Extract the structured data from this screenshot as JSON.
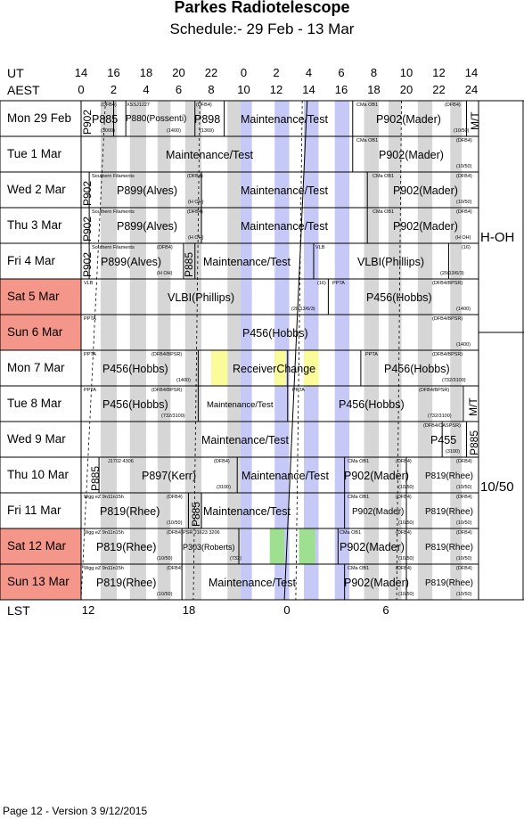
{
  "header": {
    "title": "Parkes Radiotelescope",
    "subtitle": "Schedule:- 29 Feb - 13 Mar"
  },
  "axis": {
    "ut_label": "UT",
    "aest_label": "AEST",
    "lst_label": "LST",
    "ut_ticks": [
      "14",
      "16",
      "18",
      "20",
      "22",
      "0",
      "2",
      "4",
      "6",
      "8",
      "10",
      "12",
      "14"
    ],
    "aest_ticks": [
      "0",
      "2",
      "4",
      "6",
      "8",
      "10",
      "12",
      "14",
      "16",
      "18",
      "20",
      "22",
      "24"
    ],
    "lst_ticks": [
      "12",
      "18",
      "0",
      "6"
    ]
  },
  "days": [
    {
      "label": "Mon   29 Feb",
      "weekend": false
    },
    {
      "label": "Tue    1  Mar",
      "weekend": false
    },
    {
      "label": "Wed   2  Mar",
      "weekend": false
    },
    {
      "label": "Thu    3  Mar",
      "weekend": false
    },
    {
      "label": "Fri     4  Mar",
      "weekend": false
    },
    {
      "label": "Sat    5  Mar",
      "weekend": true
    },
    {
      "label": "Sun    6  Mar",
      "weekend": true
    },
    {
      "label": "Mon   7  Mar",
      "weekend": false
    },
    {
      "label": "Tue    8  Mar",
      "weekend": false
    },
    {
      "label": "Wed   9  Mar",
      "weekend": false
    },
    {
      "label": "Thu   10 Mar",
      "weekend": false
    },
    {
      "label": "Fri    11 Mar",
      "weekend": false
    },
    {
      "label": "Sat    12 Mar",
      "weekend": true
    },
    {
      "label": "Sun   13 Mar",
      "weekend": true
    }
  ],
  "sidebar": {
    "receiver_1": "H-OH",
    "receiver_2": "10/50",
    "mt_label_1": "M/T",
    "mt_label_2": "M/T"
  },
  "colors": {
    "weekend": "#f4968a",
    "grey_band": "#d6d6d6",
    "blue_band": "#c6c8f6",
    "yellow_band": "#fbfb9a",
    "green_band": "#9ee090"
  },
  "cells": {
    "r0_p902": "P902",
    "r0_p885": "P885",
    "r0_p885_sub": "(3000)",
    "r0_dfb": "(DFB4)",
    "r0_xss": "XSSJ1227",
    "r0_p880": "P880(Possenti)",
    "r0_p880_sub": "(1400)",
    "r0_p898_hdr": "(DFB4)",
    "r0_p898": "P898",
    "r0_p898_sub": "(1369)",
    "r0_mt": "Maintenance/Test",
    "r0_cma": "CMa OB1",
    "r0_dfb2": "(DFB4)",
    "r0_p902b": "P902(Mader)",
    "r0_p902b_sub": "(10/50)",
    "r1_mt": "Maintenance/Test",
    "r1_cma": "CMa OB1",
    "r1_dfb": "(DFB4)",
    "r1_p902": "P902(Mader)",
    "r1_sub": "(10/50)",
    "r2_p902": "P902",
    "r2_sf": "Southern Filaments",
    "r2_dfb": "(DFB4)",
    "r2_p899": "P899(Alves)",
    "r2_hoh": "(H OH)",
    "r2_mt": "Maintenance/Test",
    "r2_cma": "CMa OB1",
    "r2_dfb2": "(DFB4)",
    "r2_p902b": "P902(Mader)",
    "r2_sub": "(10/50)",
    "r3_p902": "P902",
    "r3_sf": "Southern Filaments",
    "r3_dfb": "(DFB4)",
    "r3_p899": "P899(Alves)",
    "r3_hoh": "(H OH)",
    "r3_mt": "Maintenance/Test",
    "r3_cma": "CMa OB1",
    "r3_dfb2": "(DFB4)",
    "r3_p902b": "P902(Mader)",
    "r3_hoh2": "(H OH)",
    "r4_p902": "P902",
    "r4_sf": "Southern Filaments",
    "r4_dfb": "(DFB4)",
    "r4_p899": "P899(Alves)",
    "r4_hoh": "(H OH)",
    "r4_p885": "P885",
    "r4_mt": "Maintenance/Test",
    "r4_vlb": "VLB",
    "r4_lbl16": "(16)",
    "r4_vlbi": "VLBI(Phillips)",
    "r4_sub": "(20/13/6/3)",
    "r5_vlb": "VLB",
    "r5_vlbi": "VLBI(Phillips)",
    "r5_lbl16": "(16)",
    "r5_sub": "(20/13/6/3)",
    "r5_ppta": "PPTA",
    "r5_dfb": "(DFB4/BPSR)",
    "r5_p456": "P456(Hobbs)",
    "r5_1400": "(1400)",
    "r6_ppta": "PPTA",
    "r6_dfb": "(DFB4/BPSR)",
    "r6_p456": "P456(Hobbs)",
    "r6_1400": "(1400)",
    "r7_ppta": "PPTA",
    "r7_dfb": "(DFB4/BPSR)",
    "r7_p456": "P456(Hobbs)",
    "r7_1400": "(1400)",
    "r7_rc": "ReceiverChange",
    "r7_ppta2": "PPTA",
    "r7_dfb2": "(DFB4/BPSR)",
    "r7_p456b": "P456(Hobbs)",
    "r7_sub": "(732/3100)",
    "r8_ppta": "PPTA",
    "r8_dfb": "(DFB4/BPSR)",
    "r8_p456": "P456(Hobbs)",
    "r8_sub": "(732/3100)",
    "r8_mt": "Maintenance/Test",
    "r8_ppta2": "PPTA",
    "r8_dfb2": "(DFB4/BPSR)",
    "r8_p456b": "P456(Hobbs)",
    "r8_sub2": "(732/3100)",
    "r9_mt": "Maintenance/Test",
    "r9_dfb": "(DFB4/CASPSR)",
    "r9_p455": "P455",
    "r9_3100": "(3100)",
    "r9_p885": "P885",
    "r10_p885": "P885",
    "r10_j": "J1702 4306",
    "r10_dfb": "(DFB4)",
    "r10_p897": "P897(Kerr)",
    "r10_3100": "(3100)",
    "r10_mt": "Maintenance/Test",
    "r10_cma": "CMa OB1",
    "r10_dfb2": "(DFB4)",
    "r10_p902": "P902(Mader)",
    "r10_sub": "(10/50)",
    "r10_dfb3": "(DFB4)",
    "r10_p819": "P819(Rhee)",
    "r10_sub2": "(10/50)",
    "r11_wgg": "Wgg eZ 9n11n15h",
    "r11_dfb": "(DFB4)",
    "r11_p819": "P819(Rhee)",
    "r11_sub": "(10/50)",
    "r11_p885": "P885",
    "r11_mt": "Maintenance/Test",
    "r11_cma": "CMa OB1",
    "r11_dfb2": "(DFB4)",
    "r11_p902": "P902(Mader)",
    "r11_sub2": "(10/50)",
    "r11_dfb3": "(DFB4)",
    "r11_p819b": "P819(Rhee)",
    "r11_sub3": "(10/50)",
    "r12_wgg": "Wgg eZ 9n11n15h",
    "r12_dfb": "(DFB4)",
    "r12_p819": "P819(Rhee)",
    "r12_sub": "(10/50)",
    "r12_psr": "PSR J1623 3206",
    "r12_p303": "P303(Roberts)",
    "r12_732": "(732)",
    "r12_cma": "CMa OB1",
    "r12_dfb2": "(DFB4)",
    "r12_p902": "P902(Mader)",
    "r12_sub2": "(10/50)",
    "r12_dfb3": "(DFB4)",
    "r12_p819b": "P819(Rhee)",
    "r12_sub3": "(10/50)",
    "r13_wgg": "Wgg eZ 9n11n15h",
    "r13_dfb": "(DFB4)",
    "r13_p819": "P819(Rhee)",
    "r13_sub": "(10/50)",
    "r13_mt": "Maintenance/Test",
    "r13_cma": "CMa OB1",
    "r13_dfb2": "(DFB4)",
    "r13_p902": "P902(Mader)",
    "r13_sub2": "(10/50)",
    "r13_dfb3": "(DFB4)",
    "r13_p819b": "P819(Rhee)",
    "r13_sub3": "(10/50)"
  },
  "footer": "Page 12 - Version 3  9/12/2015"
}
